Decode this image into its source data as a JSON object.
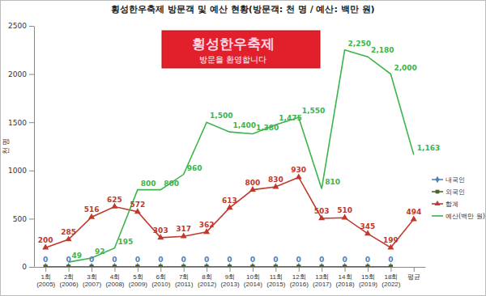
{
  "chart_data": {
    "type": "line",
    "title": "횡성한우축제 방문객 및 예산 현황(방문객: 천 명 / 예산: 백만 원)",
    "y_label": "천 명",
    "annotations": [
      "횡성한우축제",
      "방문을 환영합니다"
    ],
    "categories": [
      "1회\n(2005)",
      "2회\n(2006)",
      "3회\n(2007)",
      "4회\n(2008)",
      "5회\n(2009)",
      "6회\n(2010)",
      "7회\n(2011)",
      "8회\n(2012)",
      "9회\n(2013)",
      "10회\n(2014)",
      "11회\n(2015)",
      "12회\n(2016)",
      "13회\n(2017)",
      "14회\n(2018)",
      "15회\n(2019)",
      "18회\n(2022)",
      "평균"
    ],
    "series": [
      {
        "name": "내국인",
        "color": "#4f81bd",
        "marker": "diamond",
        "data_labels": true,
        "values": [
          0,
          0,
          0,
          0,
          0,
          0,
          0,
          0,
          0,
          0,
          0,
          0,
          0,
          0,
          0,
          0,
          null
        ]
      },
      {
        "name": "외국인",
        "color": "#4f6228",
        "marker": "square",
        "data_labels": false,
        "values": [
          0,
          0,
          0,
          0,
          0,
          0,
          0,
          0,
          0,
          0,
          0,
          0,
          0,
          0,
          0,
          0,
          null
        ]
      },
      {
        "name": "합계",
        "color": "#c0392b",
        "marker": "triangle",
        "data_labels": true,
        "values": [
          200,
          285,
          516,
          625,
          572,
          303,
          317,
          362,
          613,
          800,
          830,
          930,
          503,
          510,
          345,
          199,
          494
        ]
      },
      {
        "name": "예산(백만 원)",
        "color": "#3cb44b",
        "marker": "none",
        "data_labels": true,
        "values": [
          null,
          49,
          92,
          195,
          800,
          800,
          960,
          1500,
          1400,
          1380,
          1475,
          1550,
          810,
          2250,
          2180,
          2000,
          1163
        ],
        "value_labels": [
          null,
          "49",
          "92",
          "195",
          "800",
          "800",
          "960",
          "1,500",
          "1,400",
          "1,380",
          "1,475",
          "1,550",
          "810",
          "2,250",
          "2,180",
          "2,000",
          "1,163"
        ]
      }
    ],
    "ylim": [
      0,
      2500
    ],
    "yticks": [
      0,
      500,
      1000,
      1500,
      2000,
      2500
    ],
    "grid": false,
    "legend": "right"
  }
}
